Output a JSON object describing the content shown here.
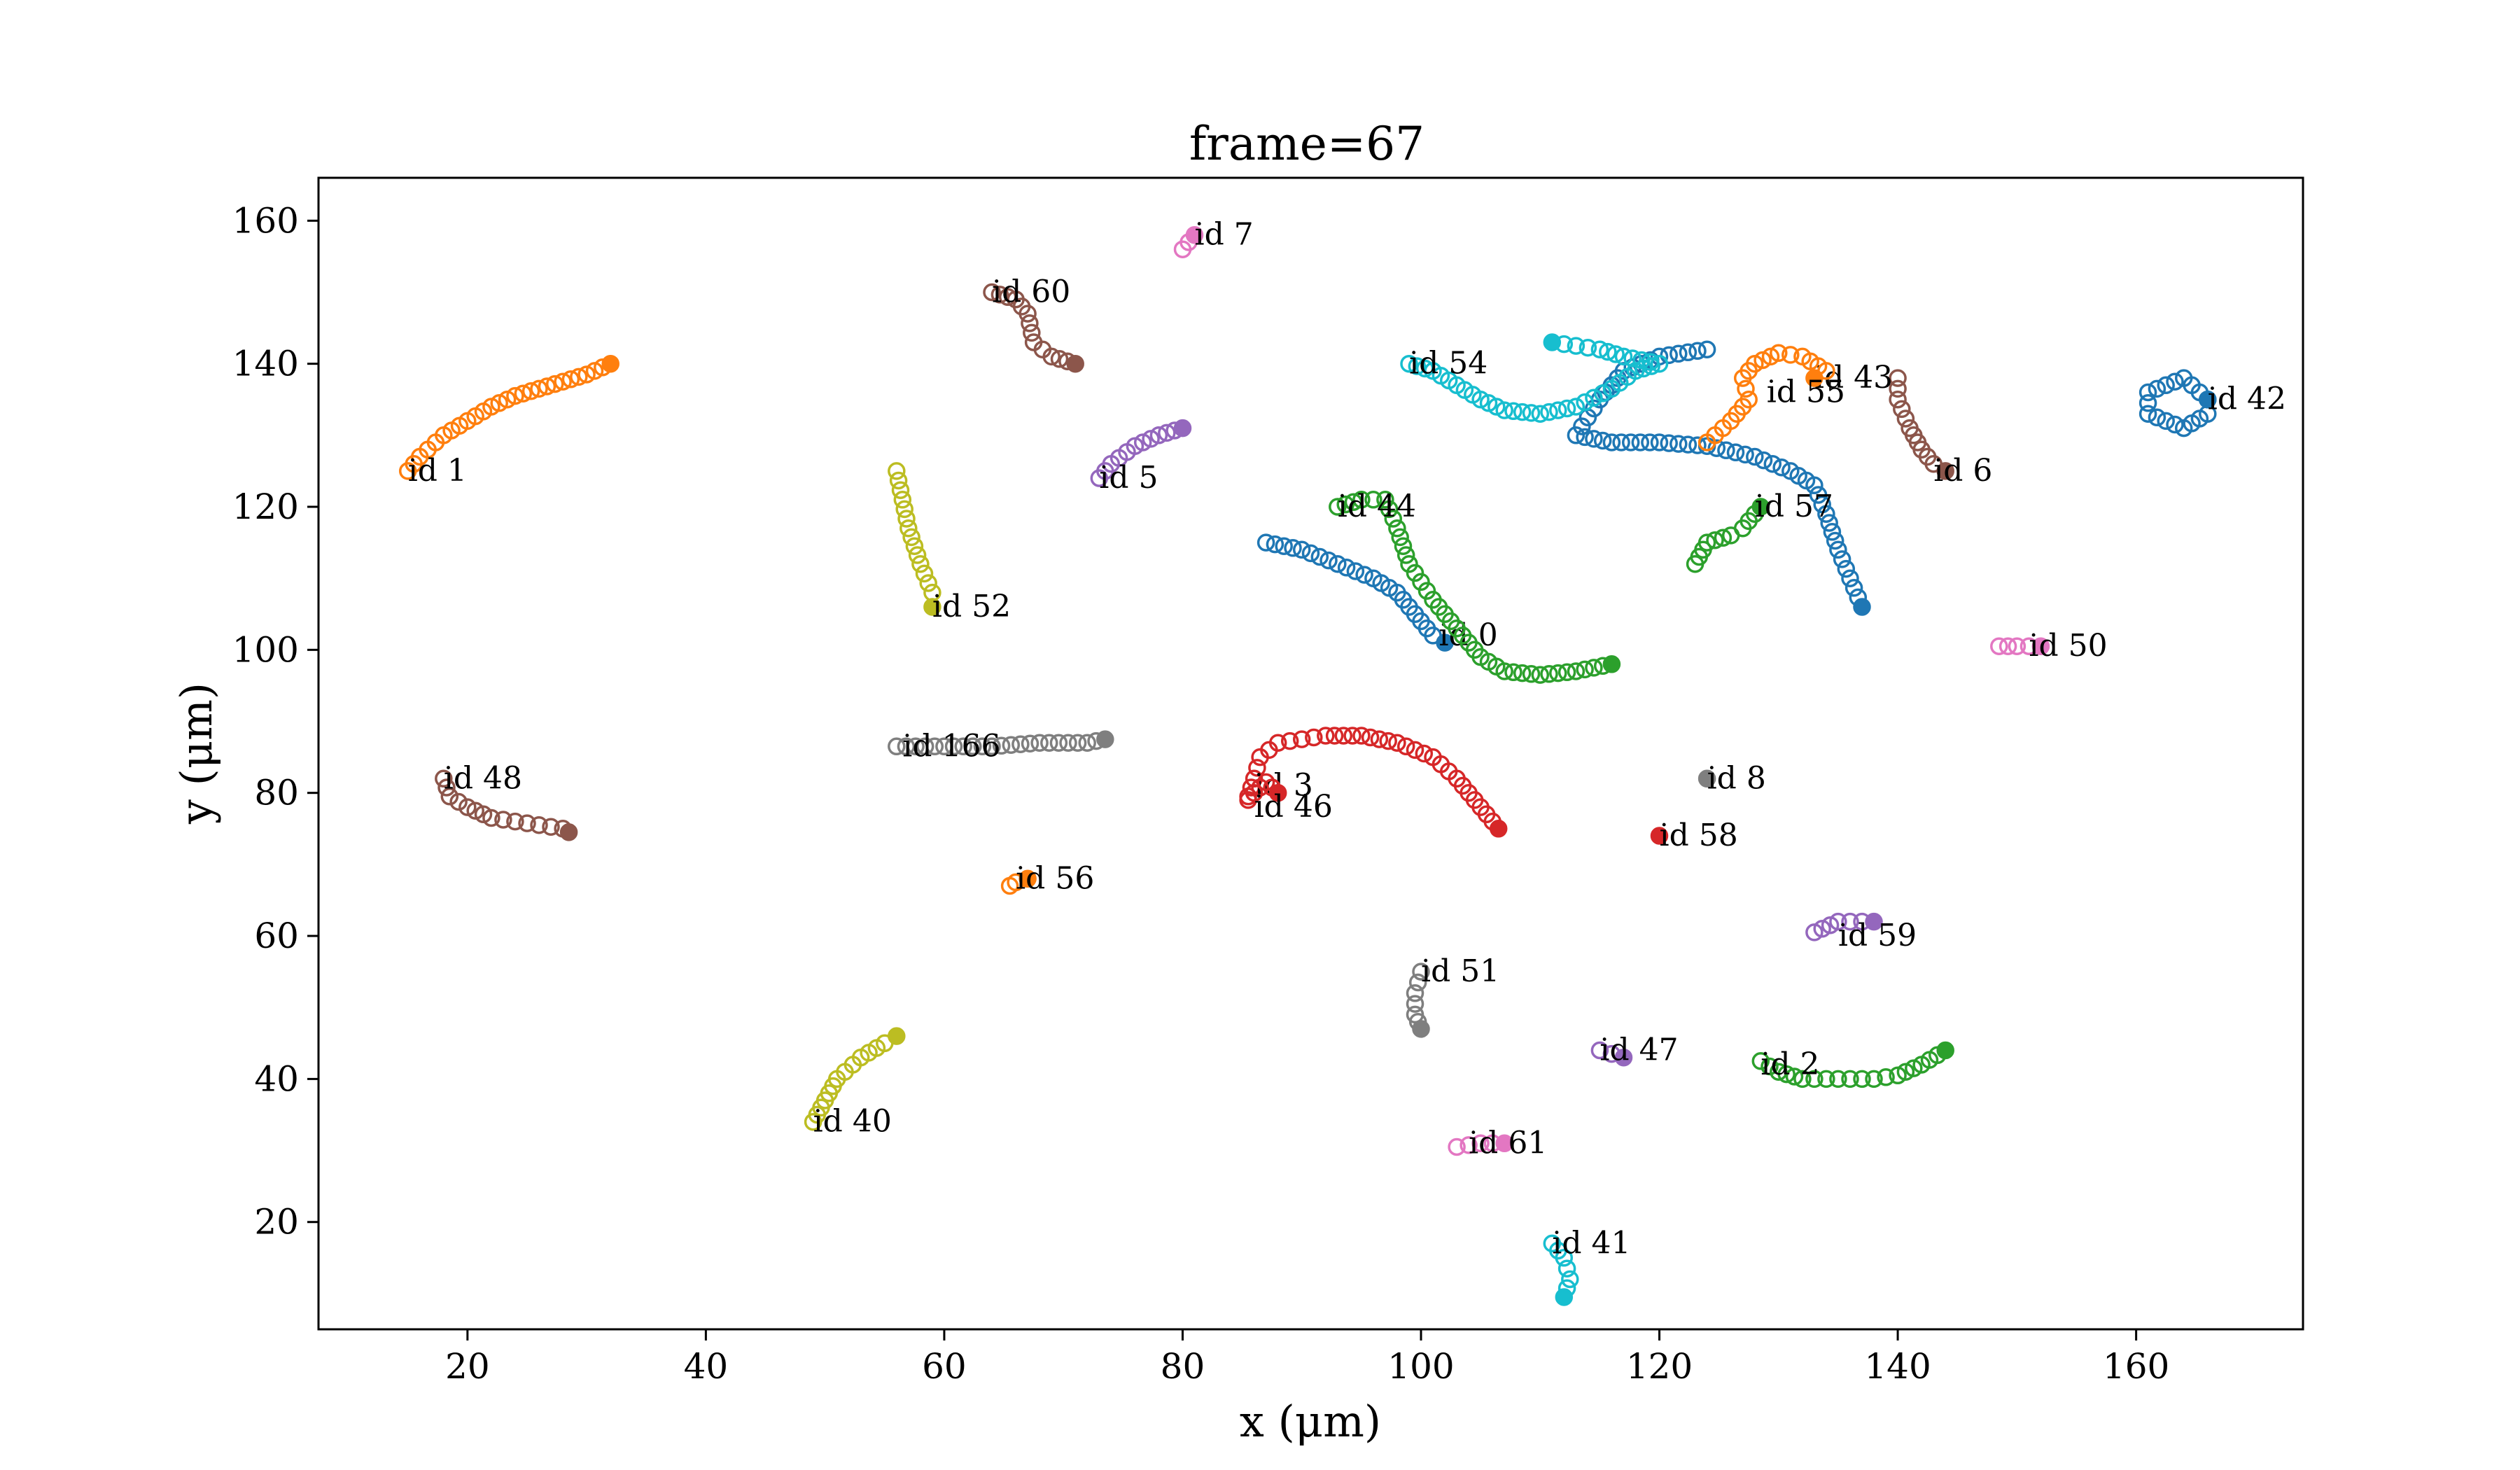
{
  "chart_data": {
    "type": "scatter",
    "title": "frame=67",
    "xlabel": "x (μm)",
    "ylabel": "y (μm)",
    "xlim": [
      7.5,
      174
    ],
    "ylim": [
      5,
      166
    ],
    "xticks": [
      20,
      40,
      60,
      80,
      100,
      120,
      140,
      160
    ],
    "yticks": [
      20,
      40,
      60,
      80,
      100,
      120,
      140,
      160
    ],
    "grid": false,
    "legend": "none",
    "series": [
      {
        "label": "id 0",
        "color": "#1f77b4",
        "label_at": [
          101.5,
          102
        ],
        "points": [
          [
            87,
            115
          ],
          [
            90,
            114
          ],
          [
            93,
            112
          ],
          [
            96,
            110
          ],
          [
            98,
            108
          ],
          [
            100,
            104
          ],
          [
            101,
            102
          ],
          [
            102,
            101
          ]
        ]
      },
      {
        "label": "id 1",
        "color": "#ff7f0e",
        "label_at": [
          15,
          125
        ],
        "points": [
          [
            15,
            125
          ],
          [
            16,
            127
          ],
          [
            18,
            130
          ],
          [
            20,
            132
          ],
          [
            22,
            134
          ],
          [
            24,
            135.5
          ],
          [
            26,
            136.5
          ],
          [
            28,
            137.5
          ],
          [
            30,
            138.5
          ],
          [
            32,
            140
          ]
        ]
      },
      {
        "label": "id 2",
        "color": "#2ca02c",
        "label_at": [
          128.5,
          42
        ],
        "points": [
          [
            128.5,
            42.5
          ],
          [
            130,
            41
          ],
          [
            132,
            40
          ],
          [
            134,
            40
          ],
          [
            136,
            40
          ],
          [
            138,
            40
          ],
          [
            140,
            40.5
          ],
          [
            142,
            42
          ],
          [
            144,
            44
          ]
        ]
      },
      {
        "label": "id 3",
        "color": "#d62728",
        "label_at": [
          86,
          81
        ],
        "points": [
          [
            85.5,
            79.5
          ],
          [
            86,
            82
          ],
          [
            86.5,
            85
          ],
          [
            88,
            87
          ],
          [
            90,
            87.5
          ],
          [
            92,
            88
          ],
          [
            95,
            88
          ],
          [
            98,
            87
          ],
          [
            101,
            85
          ],
          [
            103,
            82
          ],
          [
            105,
            78
          ],
          [
            106.5,
            75
          ]
        ]
      },
      {
        "label": "id 46",
        "color": "#d62728",
        "label_at": [
          86,
          78
        ],
        "points": [
          [
            85.5,
            79
          ],
          [
            86,
            80
          ],
          [
            87,
            81.5
          ],
          [
            88,
            80
          ]
        ]
      },
      {
        "label": "id 5",
        "color": "#9467bd",
        "label_at": [
          73,
          124
        ],
        "points": [
          [
            73,
            124
          ],
          [
            74,
            126
          ],
          [
            76,
            128.5
          ],
          [
            78,
            130
          ],
          [
            80,
            131
          ]
        ]
      },
      {
        "label": "id 6",
        "color": "#8c564b",
        "label_at": [
          143,
          125
        ],
        "points": [
          [
            140,
            138
          ],
          [
            140,
            135
          ],
          [
            141,
            131
          ],
          [
            142,
            128
          ],
          [
            143,
            126
          ],
          [
            144,
            125
          ]
        ]
      },
      {
        "label": "id 7",
        "color": "#e377c2",
        "label_at": [
          81,
          158
        ],
        "points": [
          [
            80,
            156
          ],
          [
            80.5,
            157
          ],
          [
            81,
            158
          ]
        ]
      },
      {
        "label": "id 8",
        "color": "#7f7f7f",
        "label_at": [
          124,
          82
        ],
        "points": [
          [
            124,
            82
          ]
        ]
      },
      {
        "label": "id 40",
        "color": "#bcbd22",
        "label_at": [
          49,
          34
        ],
        "points": [
          [
            49,
            34
          ],
          [
            50,
            37
          ],
          [
            51,
            40
          ],
          [
            53,
            43
          ],
          [
            55,
            45
          ],
          [
            56,
            46
          ]
        ]
      },
      {
        "label": "id 41",
        "color": "#17becf",
        "label_at": [
          111,
          17
        ],
        "points": [
          [
            111,
            17
          ],
          [
            112,
            15
          ],
          [
            112.5,
            12
          ],
          [
            112,
            9.5
          ]
        ]
      },
      {
        "label": "id 42",
        "color": "#1f77b4",
        "label_at": [
          166,
          135
        ],
        "points": [
          [
            166,
            135
          ],
          [
            164,
            138
          ],
          [
            161,
            136
          ],
          [
            161,
            133
          ],
          [
            164,
            131
          ],
          [
            166,
            133
          ],
          [
            166,
            135
          ]
        ]
      },
      {
        "label": "id 43",
        "color": "#1f77b4",
        "label_at": [
          133,
          138
        ],
        "points": [
          [
            124,
            142
          ],
          [
            120,
            141
          ],
          [
            117,
            139
          ],
          [
            115,
            135
          ],
          [
            113,
            130
          ],
          [
            116,
            129
          ],
          [
            120,
            129
          ],
          [
            124,
            128.5
          ],
          [
            128,
            127
          ],
          [
            131,
            125
          ],
          [
            133,
            123
          ],
          [
            134,
            119
          ],
          [
            135,
            114
          ],
          [
            136,
            110
          ],
          [
            137,
            106
          ]
        ]
      },
      {
        "label": "id 44",
        "color": "#2ca02c",
        "label_at": [
          93,
          120
        ],
        "points": [
          [
            93,
            120
          ],
          [
            95,
            121
          ],
          [
            97,
            121
          ],
          [
            98,
            117
          ],
          [
            99,
            112
          ],
          [
            101,
            107
          ],
          [
            103,
            103
          ],
          [
            105,
            99
          ],
          [
            107,
            97
          ],
          [
            110,
            96.5
          ],
          [
            113,
            97
          ],
          [
            116,
            98
          ]
        ]
      },
      {
        "label": "id 47",
        "color": "#9467bd",
        "label_at": [
          115,
          44
        ],
        "points": [
          [
            115,
            44
          ],
          [
            116,
            43.5
          ],
          [
            117,
            43
          ]
        ]
      },
      {
        "label": "id 48",
        "color": "#8c564b",
        "label_at": [
          18,
          82
        ],
        "points": [
          [
            18,
            82
          ],
          [
            18.5,
            79.5
          ],
          [
            20,
            78
          ],
          [
            22,
            76.5
          ],
          [
            24,
            76
          ],
          [
            26,
            75.5
          ],
          [
            28,
            75
          ],
          [
            28.5,
            74.5
          ]
        ]
      },
      {
        "label": "id 50",
        "color": "#e377c2",
        "label_at": [
          151,
          100.5
        ],
        "points": [
          [
            148.5,
            100.5
          ],
          [
            150,
            100.5
          ],
          [
            152,
            100.5
          ]
        ]
      },
      {
        "label": "id 51",
        "color": "#7f7f7f",
        "label_at": [
          100,
          55
        ],
        "points": [
          [
            100,
            55
          ],
          [
            99.5,
            52
          ],
          [
            99.5,
            49
          ],
          [
            100,
            47
          ]
        ]
      },
      {
        "label": "id 52",
        "color": "#bcbd22",
        "label_at": [
          59,
          106
        ],
        "points": [
          [
            56,
            125
          ],
          [
            56.5,
            121
          ],
          [
            57,
            117
          ],
          [
            58,
            112
          ],
          [
            59,
            108
          ],
          [
            59,
            106
          ]
        ]
      },
      {
        "label": "id 54",
        "color": "#17becf",
        "label_at": [
          99,
          140
        ],
        "points": [
          [
            99,
            140
          ],
          [
            101,
            139
          ],
          [
            103,
            137
          ],
          [
            105,
            135
          ],
          [
            107,
            133.5
          ],
          [
            110,
            133
          ],
          [
            113,
            134
          ],
          [
            116,
            136.5
          ],
          [
            118,
            139
          ],
          [
            120,
            140
          ],
          [
            117,
            141
          ],
          [
            115,
            142
          ],
          [
            113,
            142.5
          ],
          [
            111,
            143
          ]
        ]
      },
      {
        "label": "id 55",
        "color": "#ff7f0e",
        "label_at": [
          129,
          136
        ],
        "points": [
          [
            124,
            129
          ],
          [
            126,
            132
          ],
          [
            127.5,
            135
          ],
          [
            127,
            138
          ],
          [
            128,
            140
          ],
          [
            130,
            141.5
          ],
          [
            132,
            141
          ],
          [
            134,
            139
          ],
          [
            133,
            138
          ]
        ]
      },
      {
        "label": "id 56",
        "color": "#ff7f0e",
        "label_at": [
          66,
          68
        ],
        "points": [
          [
            65.5,
            67
          ],
          [
            66,
            67.5
          ],
          [
            67,
            68
          ]
        ]
      },
      {
        "label": "id 57",
        "color": "#2ca02c",
        "label_at": [
          128,
          120
        ],
        "points": [
          [
            123,
            112
          ],
          [
            124,
            115
          ],
          [
            126,
            116
          ],
          [
            127,
            117
          ],
          [
            128.5,
            120
          ]
        ]
      },
      {
        "label": "id 58",
        "color": "#d62728",
        "label_at": [
          120,
          74
        ],
        "points": [
          [
            120,
            74
          ]
        ]
      },
      {
        "label": "id 59",
        "color": "#9467bd",
        "label_at": [
          135,
          60
        ],
        "points": [
          [
            133,
            60.5
          ],
          [
            135,
            62
          ],
          [
            137,
            62
          ],
          [
            138,
            62
          ]
        ]
      },
      {
        "label": "id 60",
        "color": "#8c564b",
        "label_at": [
          64,
          150
        ],
        "points": [
          [
            64,
            150
          ],
          [
            66,
            149
          ],
          [
            67,
            147
          ],
          [
            67.5,
            143
          ],
          [
            69,
            141
          ],
          [
            71,
            140
          ]
        ]
      },
      {
        "label": "id 61",
        "color": "#e377c2",
        "label_at": [
          104,
          31
        ],
        "points": [
          [
            103,
            30.5
          ],
          [
            105,
            31
          ],
          [
            107,
            31
          ]
        ]
      },
      {
        "label": "id 166",
        "color": "#7f7f7f",
        "label_at": [
          56.5,
          86.5
        ],
        "points": [
          [
            56,
            86.5
          ],
          [
            60,
            86.5
          ],
          [
            64,
            86.5
          ],
          [
            68,
            87
          ],
          [
            72,
            87
          ],
          [
            73.5,
            87.5
          ]
        ]
      }
    ]
  }
}
